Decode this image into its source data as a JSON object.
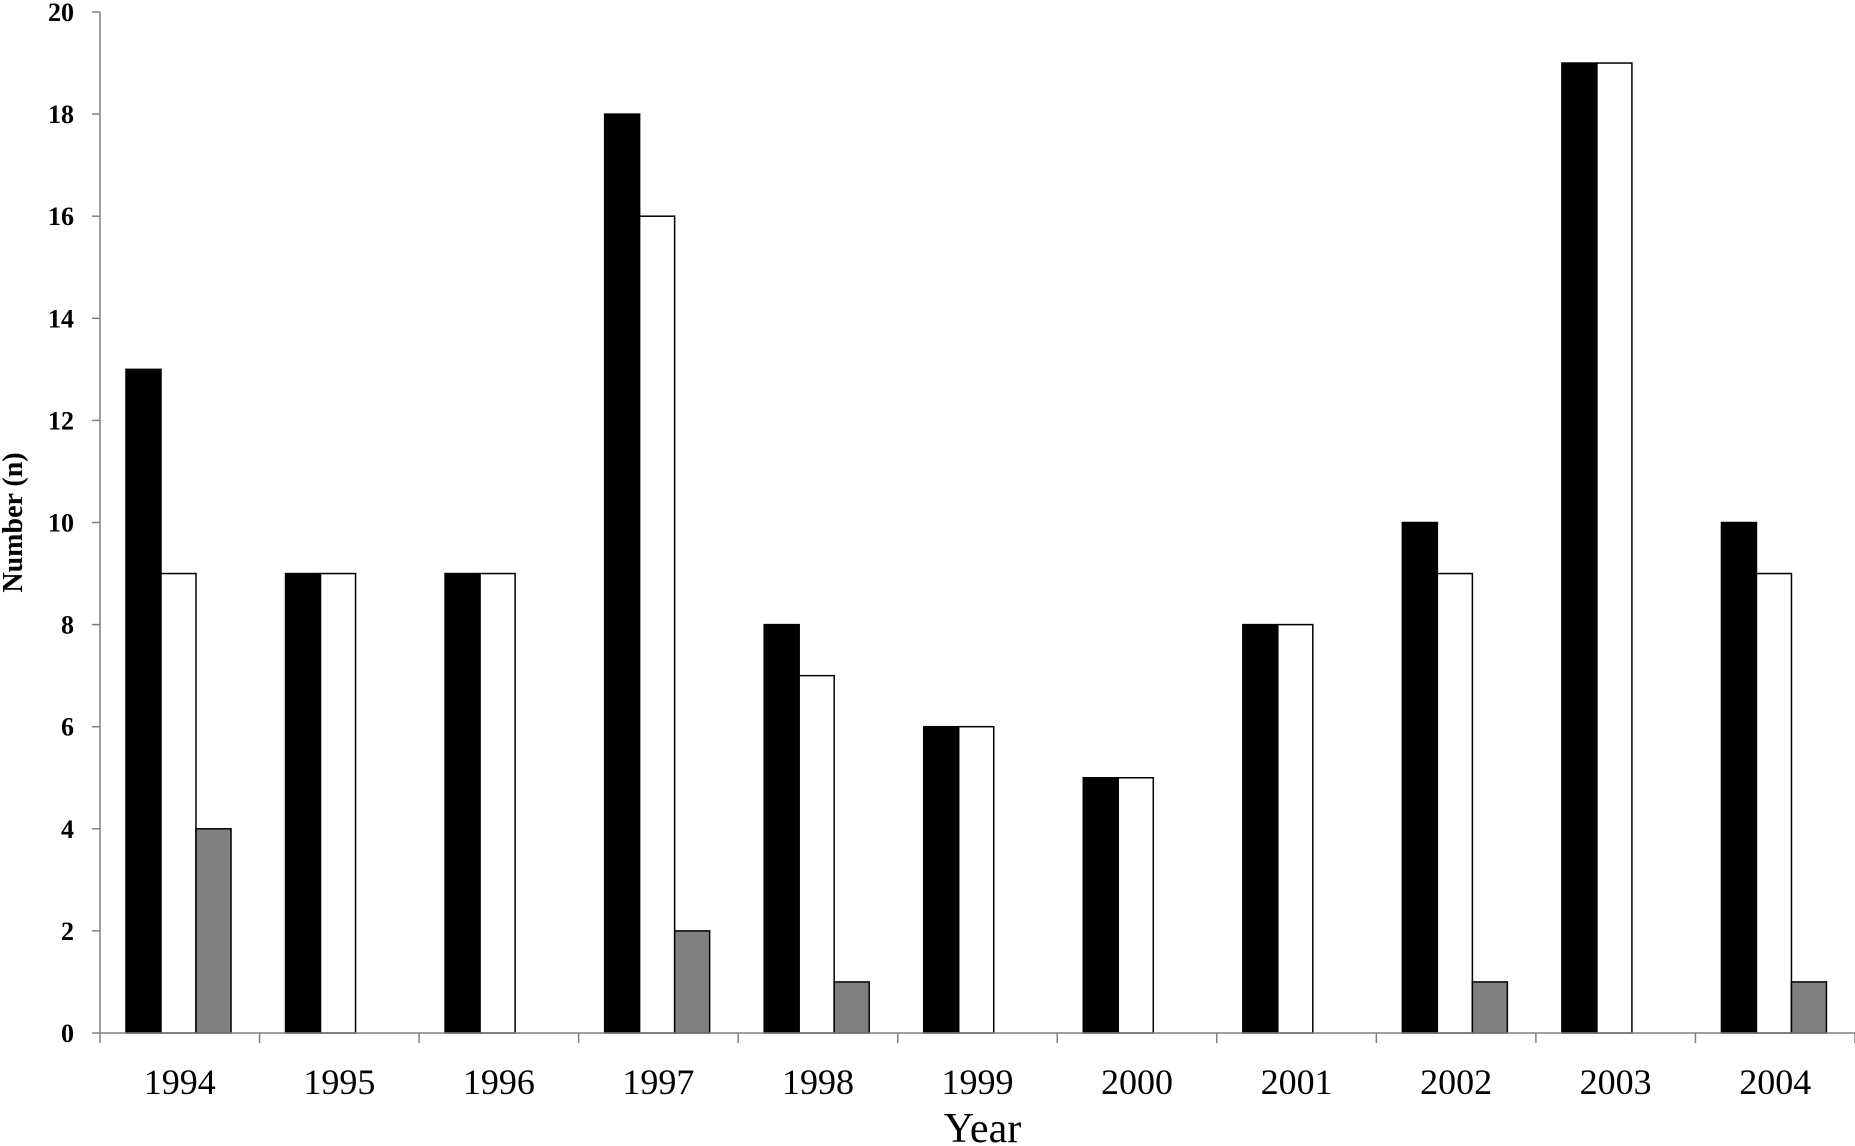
{
  "chart_data": {
    "type": "bar",
    "title": "",
    "xlabel": "Year",
    "ylabel": "Number (n)",
    "ylim": [
      0,
      20
    ],
    "yticks": [
      0,
      2,
      4,
      6,
      8,
      10,
      12,
      14,
      16,
      18,
      20
    ],
    "grid": false,
    "legend": "none",
    "categories": [
      "1994",
      "1995",
      "1996",
      "1997",
      "1998",
      "1999",
      "2000",
      "2001",
      "2002",
      "2003",
      "2004"
    ],
    "series": [
      {
        "color": "#000000",
        "values": [
          13,
          9,
          9,
          18,
          8,
          6,
          5,
          8,
          10,
          19,
          10
        ]
      },
      {
        "color": "#ffffff",
        "values": [
          9,
          9,
          9,
          16,
          7,
          6,
          5,
          8,
          9,
          19,
          9
        ]
      },
      {
        "color": "#808080",
        "values": [
          4,
          0,
          0,
          2,
          1,
          0,
          0,
          0,
          1,
          0,
          1
        ]
      }
    ]
  }
}
